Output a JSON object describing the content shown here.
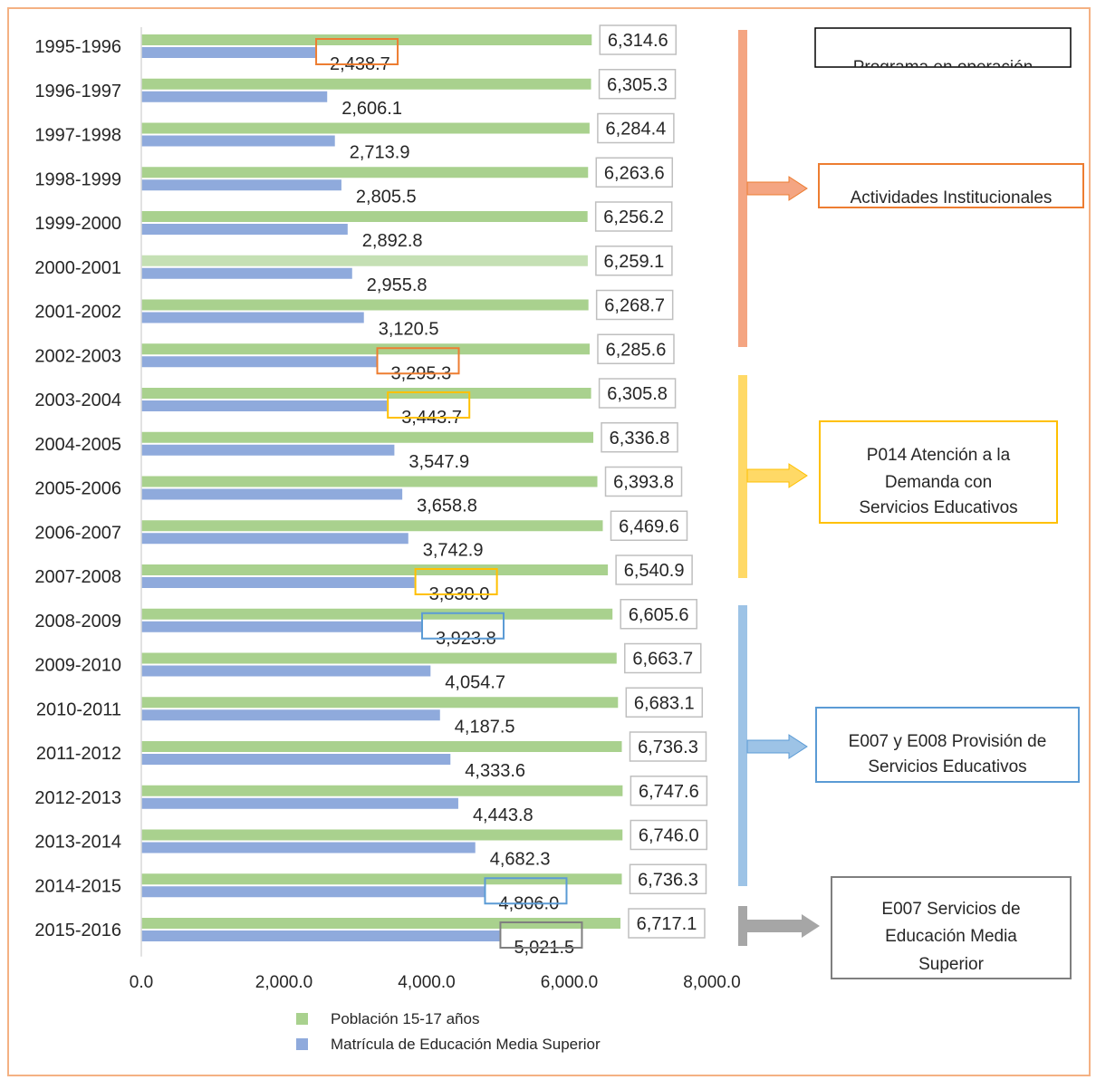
{
  "chart_data": {
    "type": "bar",
    "orientation": "horizontal",
    "categories": [
      "1995-1996",
      "1996-1997",
      "1997-1998",
      "1998-1999",
      "1999-2000",
      "2000-2001",
      "2001-2002",
      "2002-2003",
      "2003-2004",
      "2004-2005",
      "2005-2006",
      "2006-2007",
      "2007-2008",
      "2008-2009",
      "2009-2010",
      "2010-2011",
      "2011-2012",
      "2012-2013",
      "2013-2014",
      "2014-2015",
      "2015-2016"
    ],
    "series": [
      {
        "name": "Población 15-17 años",
        "color": "#a9d18e",
        "values": [
          6314.6,
          6305.3,
          6284.4,
          6263.6,
          6256.2,
          6259.1,
          6268.7,
          6285.6,
          6305.8,
          6336.8,
          6393.8,
          6469.6,
          6540.9,
          6605.6,
          6663.7,
          6683.1,
          6736.3,
          6747.6,
          6746.0,
          6736.3,
          6717.1
        ],
        "labels": [
          "6,314.6",
          "6,305.3",
          "6,284.4",
          "6,263.6",
          "6,256.2",
          "6,259.1",
          "6,268.7",
          "6,285.6",
          "6,305.8",
          "6,336.8",
          "6,393.8",
          "6,469.6",
          "6,540.9",
          "6,605.6",
          "6,663.7",
          "6,683.1",
          "6,736.3",
          "6,747.6",
          "6,746.0",
          "6,736.3",
          "6,717.1"
        ]
      },
      {
        "name": "Matrícula de Educación Media Superior",
        "color": "#8faadc",
        "values": [
          2438.7,
          2606.1,
          2713.9,
          2805.5,
          2892.8,
          2955.8,
          3120.5,
          3295.3,
          3443.7,
          3547.9,
          3658.8,
          3742.9,
          3830.0,
          3923.8,
          4054.7,
          4187.5,
          4333.6,
          4443.8,
          4682.3,
          4806.0,
          5021.5
        ],
        "labels": [
          "2,438.7",
          "2,606.1",
          "2,713.9",
          "2,805.5",
          "2,892.8",
          "2,955.8",
          "3,120.5",
          "3,295.3",
          "3,443.7",
          "3,547.9",
          "3,658.8",
          "3,742.9",
          "3,830.0",
          "3,923.8",
          "4,054.7",
          "4,187.5",
          "4,333.6",
          "4,443.8",
          "4,682.3",
          "4,806.0",
          "5,021.5"
        ]
      }
    ],
    "xlim": [
      0,
      8000
    ],
    "x_ticks": [
      0,
      2000,
      4000,
      6000,
      8000
    ],
    "x_tick_labels": [
      "0.0",
      "2,000.0",
      "4,000.0",
      "6,000.0",
      "8,000.0"
    ],
    "grid": false,
    "legend": "bottom"
  },
  "highlights": [
    {
      "row": 0,
      "color": "#ed7d31"
    },
    {
      "row": 7,
      "color": "#ed7d31"
    },
    {
      "row": 8,
      "color": "#ffc000"
    },
    {
      "row": 12,
      "color": "#ffc000"
    },
    {
      "row": 13,
      "color": "#5b9bd5"
    },
    {
      "row": 19,
      "color": "#5b9bd5"
    },
    {
      "row": 20,
      "color": "#7f7f7f"
    }
  ],
  "programs": [
    {
      "text": "Programa en operación",
      "color": "#000000",
      "lines": [
        "Programa en operación"
      ]
    },
    {
      "text": "Actividades Institucionales",
      "color": "#ed7d31",
      "lines": [
        "Actividades Institucionales"
      ]
    },
    {
      "text": "P014 Atención a la Demanda con Servicios Educativos",
      "color": "#ffc000",
      "lines": [
        "P014 Atención a la",
        "Demanda con",
        "Servicios Educativos"
      ]
    },
    {
      "text": "E007 y E008 Provisión de Servicios Educativos",
      "color": "#5b9bd5",
      "lines": [
        "E007 y E008 Provisión de",
        "Servicios Educativos"
      ]
    },
    {
      "text": "E007 Servicios de Educación Media Superior",
      "color": "#7f7f7f",
      "lines": [
        "E007 Servicios de",
        "Educación Media",
        "Superior"
      ]
    }
  ],
  "brackets": [
    {
      "color": "#f4a582"
    },
    {
      "color": "#ffd966"
    },
    {
      "color": "#9dc3e6"
    },
    {
      "color": "#a6a6a6"
    }
  ]
}
